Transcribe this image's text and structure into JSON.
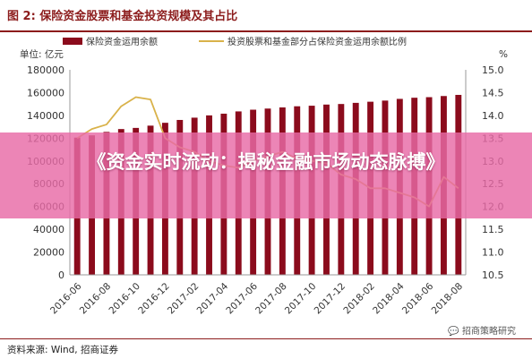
{
  "figure": {
    "title": "图 2:  保险资金股票和基金投资规模及其占比",
    "source": "资料来源: Wind, 招商证券",
    "watermark": "招商策略研究"
  },
  "overlay": {
    "text": "《资金实时流动：揭秘金融市场动态脉搏》"
  },
  "colors": {
    "bar": "#8b0b1c",
    "line": "#d9b24a",
    "accent": "#8c1c1c",
    "overlay": "#e86aa6"
  },
  "chart_data": {
    "type": "bar",
    "left_unit": "单位: 亿元",
    "right_unit": "%",
    "categories": [
      "2016-06",
      "2016-07",
      "2016-08",
      "2016-09",
      "2016-10",
      "2016-11",
      "2016-12",
      "2017-01",
      "2017-02",
      "2017-03",
      "2017-04",
      "2017-05",
      "2017-06",
      "2017-07",
      "2017-08",
      "2017-09",
      "2017-10",
      "2017-11",
      "2017-12",
      "2018-01",
      "2018-02",
      "2018-03",
      "2018-04",
      "2018-05",
      "2018-06",
      "2018-07",
      "2018-08"
    ],
    "x_tick_labels": [
      "2016-06",
      "2016-08",
      "2016-10",
      "2016-12",
      "2017-02",
      "2017-04",
      "2017-06",
      "2017-08",
      "2017-10",
      "2017-12",
      "2018-02",
      "2018-04",
      "2018-06",
      "2018-08"
    ],
    "series": [
      {
        "name": "保险资金运用余额",
        "type": "bar",
        "axis": "left",
        "values": [
          120500,
          122500,
          125500,
          128000,
          129000,
          131000,
          133500,
          136000,
          138000,
          140000,
          141500,
          143500,
          145000,
          146000,
          147000,
          148000,
          148500,
          149500,
          150000,
          151000,
          152000,
          153000,
          154500,
          155500,
          156000,
          157000,
          158000
        ]
      },
      {
        "name": "投资股票和基金部分占保险资金运用余额比例",
        "type": "line",
        "axis": "right",
        "values": [
          13.5,
          13.7,
          13.8,
          14.2,
          14.4,
          14.35,
          13.5,
          13.3,
          13.2,
          13.0,
          12.9,
          12.85,
          13.0,
          13.1,
          13.2,
          13.05,
          13.0,
          12.95,
          12.7,
          12.6,
          12.4,
          12.4,
          12.3,
          12.2,
          12.0,
          12.65,
          12.4
        ]
      }
    ],
    "y_left": {
      "min": 0,
      "max": 180000,
      "ticks": [
        "0",
        "20000",
        "40000",
        "60000",
        "80000",
        "100000",
        "120000",
        "140000",
        "160000",
        "180000"
      ]
    },
    "y_right": {
      "min": 10.5,
      "max": 15.0,
      "ticks": [
        "10.5",
        "11.0",
        "11.5",
        "12.0",
        "12.5",
        "13.0",
        "13.5",
        "14.0",
        "14.5",
        "15.0"
      ]
    },
    "grid": false,
    "legend_position": "top"
  }
}
